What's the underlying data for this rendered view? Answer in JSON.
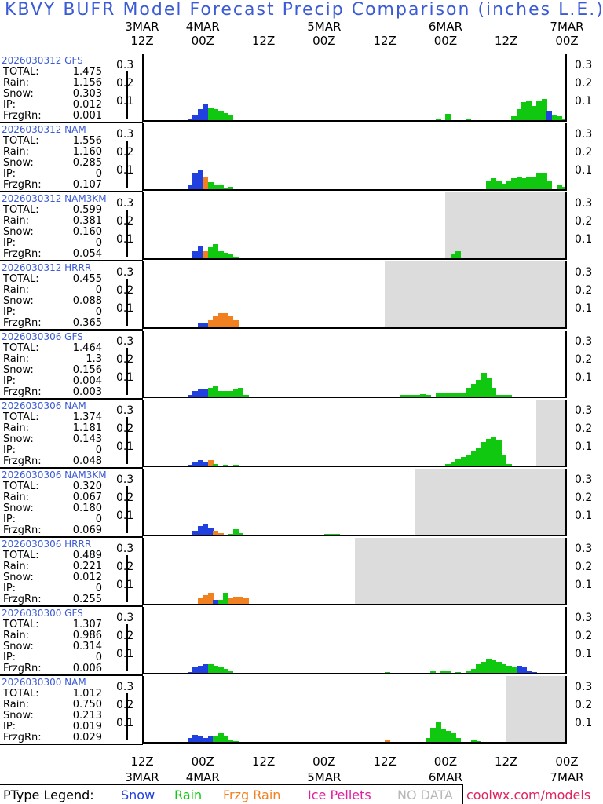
{
  "title": "KBVY BUFR Model Forecast Precip Comparison (inches L.E.)",
  "axis": {
    "hours": [
      "12Z",
      "00Z",
      "12Z",
      "00Z",
      "12Z",
      "00Z",
      "12Z",
      "00Z"
    ],
    "dates": [
      {
        "label": "3MAR",
        "index": 0
      },
      {
        "label": "4MAR",
        "index": 1
      },
      {
        "label": "5MAR",
        "index": 3
      },
      {
        "label": "6MAR",
        "index": 5
      },
      {
        "label": "7MAR",
        "index": 7
      }
    ]
  },
  "y_ticks": [
    "0.3",
    "0.2",
    "0.1"
  ],
  "colors": {
    "snow": "#2040e0",
    "rain": "#10c810",
    "frzg": "#f08020",
    "ip": "#e020a0",
    "nodata": "#dcdcdc",
    "title": "#3b5bd6"
  },
  "stat_labels": [
    "TOTAL:",
    "Rain:",
    "Snow:",
    "IP:",
    "FrzgRn:"
  ],
  "legend": {
    "label": "PType Legend:",
    "snow": "Snow",
    "rain": "Rain",
    "frzg": "Frzg Rain",
    "ip": "Ice Pellets",
    "nodata": "NO DATA"
  },
  "footer_url": "coolwx.com/models",
  "chart_data": [
    {
      "type": "bar",
      "model": "2026030312 GFS",
      "total": "1.475",
      "rain": "1.156",
      "snow": "0.303",
      "ip": "0.012",
      "frzg": "0.001",
      "nodata_from_hour": null,
      "x_unit": "hours after 3MAR 12Z",
      "ylim": [
        0,
        0.35
      ],
      "bars": [
        [
          9,
          0.01,
          "snow"
        ],
        [
          10,
          0.025,
          "snow"
        ],
        [
          11,
          0.06,
          "snow"
        ],
        [
          12,
          0.09,
          "snow"
        ],
        [
          13,
          0.07,
          "rain"
        ],
        [
          14,
          0.06,
          "rain"
        ],
        [
          15,
          0.05,
          "rain"
        ],
        [
          16,
          0.04,
          "rain"
        ],
        [
          17,
          0.03,
          "rain"
        ],
        [
          58,
          0.01,
          "rain"
        ],
        [
          60,
          0.035,
          "rain"
        ],
        [
          64,
          0.01,
          "rain"
        ],
        [
          73,
          0.02,
          "rain"
        ],
        [
          74,
          0.06,
          "rain"
        ],
        [
          75,
          0.1,
          "rain"
        ],
        [
          76,
          0.11,
          "rain"
        ],
        [
          77,
          0.08,
          "rain"
        ],
        [
          78,
          0.11,
          "rain"
        ],
        [
          79,
          0.12,
          "rain"
        ],
        [
          80,
          0.05,
          "snow"
        ],
        [
          81,
          0.03,
          "rain"
        ],
        [
          82,
          0.02,
          "rain"
        ],
        [
          83,
          0.01,
          "rain"
        ]
      ]
    },
    {
      "type": "bar",
      "model": "2026030312 NAM",
      "total": "1.556",
      "rain": "1.160",
      "snow": "0.285",
      "ip": "0",
      "frzg": "0.107",
      "nodata_from_hour": null,
      "x_unit": "hours after 3MAR 12Z",
      "ylim": [
        0,
        0.35
      ],
      "bars": [
        [
          9,
          0.02,
          "snow"
        ],
        [
          10,
          0.09,
          "snow"
        ],
        [
          11,
          0.11,
          "snow"
        ],
        [
          12,
          0.07,
          "frzg"
        ],
        [
          13,
          0.04,
          "rain"
        ],
        [
          14,
          0.02,
          "rain"
        ],
        [
          15,
          0.02,
          "rain"
        ],
        [
          16,
          0.01,
          "rain"
        ],
        [
          17,
          0.015,
          "rain"
        ],
        [
          68,
          0.05,
          "rain"
        ],
        [
          69,
          0.06,
          "rain"
        ],
        [
          70,
          0.05,
          "rain"
        ],
        [
          71,
          0.03,
          "rain"
        ],
        [
          72,
          0.05,
          "rain"
        ],
        [
          73,
          0.06,
          "rain"
        ],
        [
          74,
          0.07,
          "rain"
        ],
        [
          75,
          0.06,
          "rain"
        ],
        [
          76,
          0.07,
          "rain"
        ],
        [
          77,
          0.07,
          "rain"
        ],
        [
          78,
          0.09,
          "rain"
        ],
        [
          79,
          0.09,
          "rain"
        ],
        [
          80,
          0.05,
          "rain"
        ],
        [
          82,
          0.02,
          "rain"
        ],
        [
          83,
          0.015,
          "rain"
        ]
      ]
    },
    {
      "type": "bar",
      "model": "2026030312 NAM3KM",
      "total": "0.599",
      "rain": "0.381",
      "snow": "0.160",
      "ip": "0",
      "frzg": "0.054",
      "nodata_from_hour": 60,
      "x_unit": "hours after 3MAR 12Z",
      "ylim": [
        0,
        0.35
      ],
      "bars": [
        [
          10,
          0.04,
          "snow"
        ],
        [
          11,
          0.07,
          "snow"
        ],
        [
          12,
          0.04,
          "frzg"
        ],
        [
          13,
          0.06,
          "rain"
        ],
        [
          14,
          0.08,
          "rain"
        ],
        [
          15,
          0.04,
          "rain"
        ],
        [
          16,
          0.03,
          "rain"
        ],
        [
          17,
          0.02,
          "rain"
        ],
        [
          18,
          0.01,
          "rain"
        ],
        [
          61,
          0.02,
          "rain"
        ],
        [
          62,
          0.04,
          "rain"
        ]
      ]
    },
    {
      "type": "bar",
      "model": "2026030312 HRRR",
      "total": "0.455",
      "rain": "0",
      "snow": "0.088",
      "ip": "0",
      "frzg": "0.365",
      "nodata_from_hour": 48,
      "x_unit": "hours after 3MAR 12Z",
      "ylim": [
        0,
        0.35
      ],
      "bars": [
        [
          10,
          0.005,
          "snow"
        ],
        [
          11,
          0.02,
          "snow"
        ],
        [
          12,
          0.02,
          "snow"
        ],
        [
          13,
          0.04,
          "frzg"
        ],
        [
          14,
          0.06,
          "frzg"
        ],
        [
          15,
          0.08,
          "frzg"
        ],
        [
          16,
          0.08,
          "frzg"
        ],
        [
          17,
          0.06,
          "frzg"
        ],
        [
          18,
          0.04,
          "frzg"
        ]
      ]
    },
    {
      "type": "bar",
      "model": "2026030306 GFS",
      "total": "1.464",
      "rain": "1.3",
      "snow": "0.156",
      "ip": "0.004",
      "frzg": "0.003",
      "nodata_from_hour": null,
      "x_unit": "hours after 3MAR 12Z",
      "ylim": [
        0,
        0.35
      ],
      "bars": [
        [
          9,
          0.01,
          "snow"
        ],
        [
          10,
          0.03,
          "snow"
        ],
        [
          11,
          0.04,
          "snow"
        ],
        [
          12,
          0.04,
          "snow"
        ],
        [
          13,
          0.05,
          "rain"
        ],
        [
          14,
          0.06,
          "rain"
        ],
        [
          15,
          0.03,
          "rain"
        ],
        [
          16,
          0.03,
          "rain"
        ],
        [
          17,
          0.03,
          "rain"
        ],
        [
          18,
          0.04,
          "rain"
        ],
        [
          19,
          0.05,
          "rain"
        ],
        [
          20,
          0.01,
          "rain"
        ],
        [
          51,
          0.01,
          "rain"
        ],
        [
          52,
          0.01,
          "rain"
        ],
        [
          53,
          0.01,
          "rain"
        ],
        [
          54,
          0.01,
          "rain"
        ],
        [
          55,
          0.015,
          "rain"
        ],
        [
          56,
          0.01,
          "rain"
        ],
        [
          58,
          0.02,
          "rain"
        ],
        [
          59,
          0.02,
          "rain"
        ],
        [
          60,
          0.02,
          "rain"
        ],
        [
          61,
          0.02,
          "rain"
        ],
        [
          62,
          0.02,
          "rain"
        ],
        [
          63,
          0.02,
          "rain"
        ],
        [
          64,
          0.05,
          "rain"
        ],
        [
          65,
          0.07,
          "rain"
        ],
        [
          66,
          0.09,
          "rain"
        ],
        [
          67,
          0.13,
          "rain"
        ],
        [
          68,
          0.1,
          "rain"
        ],
        [
          69,
          0.05,
          "rain"
        ],
        [
          70,
          0.01,
          "rain"
        ],
        [
          71,
          0.01,
          "rain"
        ],
        [
          72,
          0.01,
          "rain"
        ]
      ]
    },
    {
      "type": "bar",
      "model": "2026030306 NAM",
      "total": "1.374",
      "rain": "1.181",
      "snow": "0.143",
      "ip": "0",
      "frzg": "0.048",
      "nodata_from_hour": 78,
      "x_unit": "hours after 3MAR 12Z",
      "ylim": [
        0,
        0.35
      ],
      "bars": [
        [
          9,
          0.005,
          "snow"
        ],
        [
          10,
          0.02,
          "snow"
        ],
        [
          11,
          0.03,
          "snow"
        ],
        [
          12,
          0.02,
          "snow"
        ],
        [
          13,
          0.03,
          "frzg"
        ],
        [
          14,
          0.01,
          "rain"
        ],
        [
          16,
          0.005,
          "rain"
        ],
        [
          18,
          0.005,
          "rain"
        ],
        [
          60,
          0.01,
          "rain"
        ],
        [
          61,
          0.02,
          "rain"
        ],
        [
          62,
          0.04,
          "rain"
        ],
        [
          63,
          0.05,
          "rain"
        ],
        [
          64,
          0.06,
          "rain"
        ],
        [
          65,
          0.08,
          "rain"
        ],
        [
          66,
          0.1,
          "rain"
        ],
        [
          67,
          0.13,
          "rain"
        ],
        [
          68,
          0.15,
          "rain"
        ],
        [
          69,
          0.16,
          "rain"
        ],
        [
          70,
          0.14,
          "rain"
        ],
        [
          71,
          0.06,
          "rain"
        ],
        [
          72,
          0.01,
          "rain"
        ]
      ]
    },
    {
      "type": "bar",
      "model": "2026030306 NAM3KM",
      "total": "0.320",
      "rain": "0.067",
      "snow": "0.180",
      "ip": "0",
      "frzg": "0.069",
      "nodata_from_hour": 54,
      "x_unit": "hours after 3MAR 12Z",
      "ylim": [
        0,
        0.35
      ],
      "bars": [
        [
          10,
          0.02,
          "snow"
        ],
        [
          11,
          0.05,
          "snow"
        ],
        [
          12,
          0.06,
          "snow"
        ],
        [
          13,
          0.04,
          "snow"
        ],
        [
          14,
          0.02,
          "frzg"
        ],
        [
          15,
          0.01,
          "frzg"
        ],
        [
          17,
          0.005,
          "rain"
        ],
        [
          18,
          0.03,
          "rain"
        ],
        [
          19,
          0.01,
          "rain"
        ],
        [
          36,
          0.005,
          "rain"
        ],
        [
          37,
          0.005,
          "rain"
        ],
        [
          38,
          0.005,
          "rain"
        ]
      ]
    },
    {
      "type": "bar",
      "model": "2026030306 HRRR",
      "total": "0.489",
      "rain": "0.221",
      "snow": "0.012",
      "ip": "0",
      "frzg": "0.255",
      "nodata_from_hour": 42,
      "x_unit": "hours after 3MAR 12Z",
      "ylim": [
        0,
        0.35
      ],
      "bars": [
        [
          11,
          0.03,
          "frzg"
        ],
        [
          12,
          0.05,
          "frzg"
        ],
        [
          13,
          0.06,
          "frzg"
        ],
        [
          14,
          0.02,
          "snow"
        ],
        [
          15,
          0.02,
          "rain"
        ],
        [
          16,
          0.06,
          "rain"
        ],
        [
          17,
          0.03,
          "frzg"
        ],
        [
          18,
          0.04,
          "frzg"
        ],
        [
          19,
          0.04,
          "frzg"
        ],
        [
          20,
          0.03,
          "frzg"
        ]
      ]
    },
    {
      "type": "bar",
      "model": "2026030300 GFS",
      "total": "1.307",
      "rain": "0.986",
      "snow": "0.314",
      "ip": "0",
      "frzg": "0.006",
      "nodata_from_hour": null,
      "x_unit": "hours after 3MAR 12Z",
      "ylim": [
        0,
        0.35
      ],
      "bars": [
        [
          9,
          0.005,
          "snow"
        ],
        [
          10,
          0.03,
          "snow"
        ],
        [
          11,
          0.04,
          "snow"
        ],
        [
          12,
          0.05,
          "snow"
        ],
        [
          13,
          0.05,
          "rain"
        ],
        [
          14,
          0.04,
          "rain"
        ],
        [
          15,
          0.03,
          "rain"
        ],
        [
          16,
          0.02,
          "rain"
        ],
        [
          17,
          0.01,
          "rain"
        ],
        [
          48,
          0.005,
          "rain"
        ],
        [
          57,
          0.01,
          "rain"
        ],
        [
          59,
          0.01,
          "rain"
        ],
        [
          60,
          0.01,
          "rain"
        ],
        [
          62,
          0.005,
          "rain"
        ],
        [
          64,
          0.01,
          "rain"
        ],
        [
          65,
          0.02,
          "rain"
        ],
        [
          66,
          0.05,
          "rain"
        ],
        [
          67,
          0.06,
          "rain"
        ],
        [
          68,
          0.08,
          "rain"
        ],
        [
          69,
          0.07,
          "rain"
        ],
        [
          70,
          0.06,
          "rain"
        ],
        [
          71,
          0.05,
          "rain"
        ],
        [
          72,
          0.04,
          "rain"
        ],
        [
          73,
          0.03,
          "rain"
        ],
        [
          74,
          0.04,
          "snow"
        ],
        [
          75,
          0.03,
          "snow"
        ],
        [
          76,
          0.01,
          "snow"
        ],
        [
          77,
          0.005,
          "snow"
        ]
      ]
    },
    {
      "type": "bar",
      "model": "2026030300 NAM",
      "total": "1.012",
      "rain": "0.750",
      "snow": "0.213",
      "ip": "0.019",
      "frzg": "0.029",
      "nodata_from_hour": 72,
      "x_unit": "hours after 3MAR 12Z",
      "ylim": [
        0,
        0.35
      ],
      "bars": [
        [
          9,
          0.02,
          "snow"
        ],
        [
          10,
          0.04,
          "snow"
        ],
        [
          11,
          0.03,
          "snow"
        ],
        [
          12,
          0.02,
          "snow"
        ],
        [
          13,
          0.03,
          "snow"
        ],
        [
          14,
          0.03,
          "rain"
        ],
        [
          15,
          0.05,
          "rain"
        ],
        [
          16,
          0.03,
          "rain"
        ],
        [
          17,
          0.015,
          "rain"
        ],
        [
          18,
          0.005,
          "rain"
        ],
        [
          48,
          0.01,
          "frzg"
        ],
        [
          56,
          0.02,
          "rain"
        ],
        [
          57,
          0.08,
          "rain"
        ],
        [
          58,
          0.11,
          "rain"
        ],
        [
          59,
          0.07,
          "rain"
        ],
        [
          60,
          0.06,
          "rain"
        ],
        [
          61,
          0.05,
          "rain"
        ],
        [
          62,
          0.02,
          "rain"
        ],
        [
          65,
          0.01,
          "rain"
        ],
        [
          66,
          0.005,
          "rain"
        ]
      ]
    }
  ]
}
